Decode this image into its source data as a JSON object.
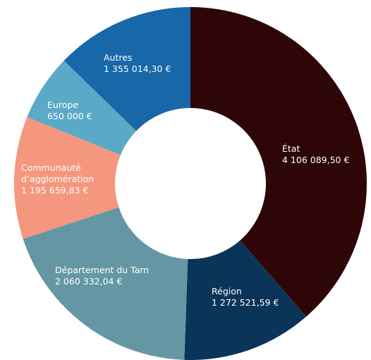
{
  "chart_data": {
    "type": "donut",
    "categories": [
      "État",
      "Région",
      "Département du Tarn",
      "Communauté d’agglomération",
      "Europe",
      "Autres"
    ],
    "values": [
      4106089.5,
      1272521.59,
      2060332.04,
      1195659.83,
      650000,
      1355014.3
    ],
    "value_labels": [
      "4 106 089,50 €",
      "1 272 521,59 €",
      "2 060 332,04 €",
      "1 195 659,83 €",
      "650 000 €",
      "1 355 014,30 €"
    ],
    "colors": [
      "#2e0608",
      "#0b3558",
      "#6497a3",
      "#f4977e",
      "#5aa9c7",
      "#1867a8"
    ]
  }
}
